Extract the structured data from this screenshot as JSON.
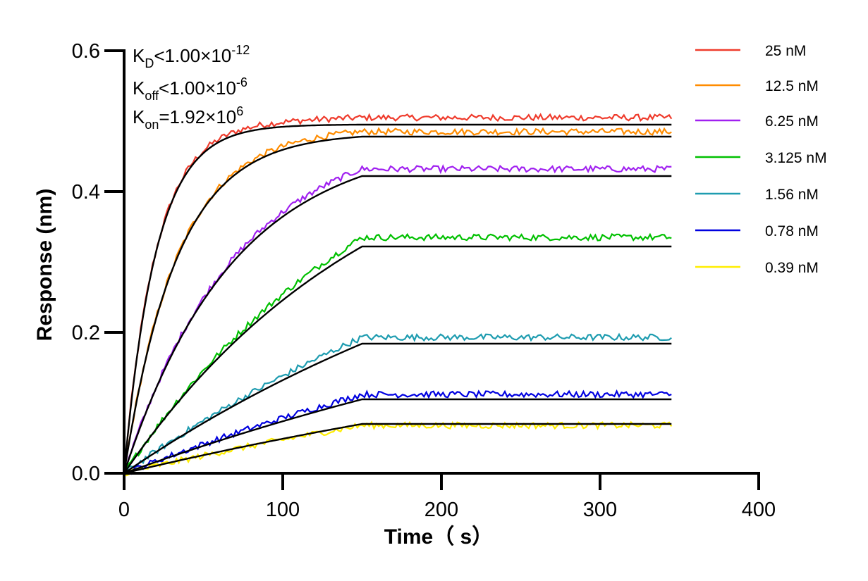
{
  "chart_data": {
    "type": "line",
    "xlabel": "Time（ s）",
    "ylabel": "Response (nm)",
    "xlim": [
      0,
      400
    ],
    "ylim": [
      0,
      0.6
    ],
    "x_ticks": [
      "0",
      "100",
      "200",
      "300",
      "400"
    ],
    "y_ticks": [
      "0.0",
      "0.2",
      "0.4",
      "0.6"
    ],
    "grid": false,
    "legend_position": "right",
    "annotations": {
      "kd": {
        "base": "K",
        "sub": "D",
        "mid": "<1.00×10",
        "sup": "-12"
      },
      "koff": {
        "base": "K",
        "sub": "off",
        "mid": "<1.00×10",
        "sup": "-6"
      },
      "kon": {
        "base": "K",
        "sub": "on",
        "mid": "=1.92×10",
        "sup": "6"
      }
    },
    "time_range": [
      0,
      345
    ],
    "association_end": 150,
    "series": [
      {
        "name": "25 nM",
        "color": "#ef3b2c",
        "plateau": 0.495,
        "observed_plateau": 0.505,
        "rate": 0.05
      },
      {
        "name": "12.5 nM",
        "color": "#ff8c00",
        "plateau": 0.478,
        "observed_plateau": 0.485,
        "rate": 0.03
      },
      {
        "name": "6.25 nM",
        "color": "#a020f0",
        "plateau": 0.422,
        "observed_plateau": 0.432,
        "rate": 0.0145
      },
      {
        "name": "3.125 nM",
        "color": "#00c000",
        "plateau": 0.322,
        "observed_plateau": 0.335,
        "rate": 0.0062
      },
      {
        "name": "1.56 nM",
        "color": "#1e9cb0",
        "plateau": 0.184,
        "observed_plateau": 0.193,
        "rate": 0.0032
      },
      {
        "name": "0.78 nM",
        "color": "#0000e0",
        "plateau": 0.105,
        "observed_plateau": 0.112,
        "rate": 0.0022
      },
      {
        "name": "0.39 nM",
        "color": "#ffee00",
        "plateau": 0.07,
        "observed_plateau": 0.068,
        "rate": 0.002
      }
    ],
    "fit_color": "#000000"
  }
}
